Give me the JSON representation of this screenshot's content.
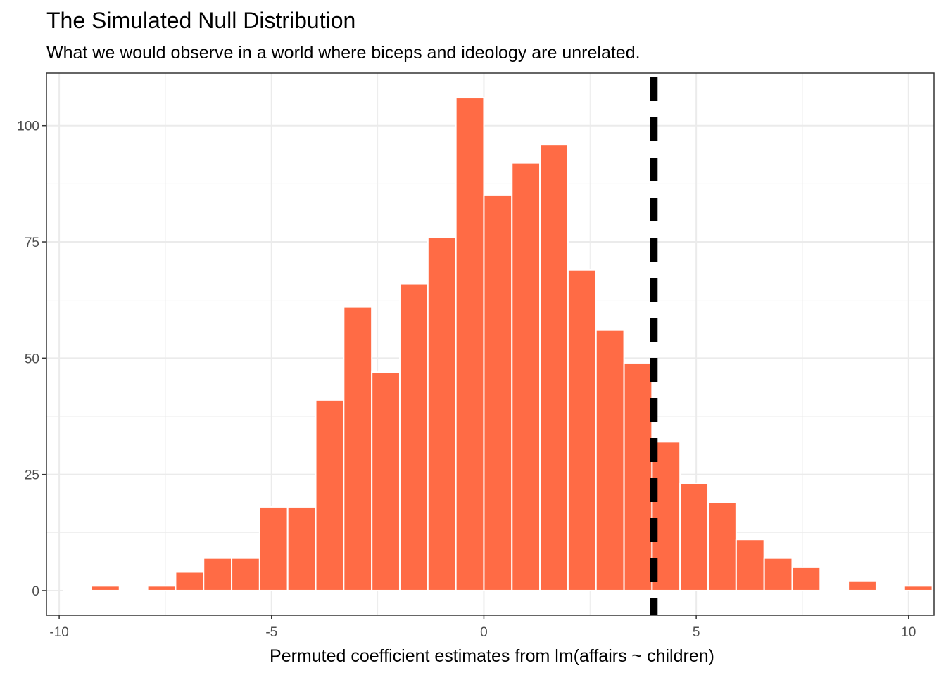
{
  "chart_data": {
    "type": "bar",
    "title": "The Simulated Null Distribution",
    "subtitle": "What we would observe in a world where biceps and ideology are unrelated.",
    "xlabel": "Permuted coefficient estimates from lm(affairs ~ children)",
    "ylabel": "",
    "xlim": [
      -10.3,
      10.6
    ],
    "ylim": [
      -5.3,
      111.3
    ],
    "x_ticks": [
      -10,
      -5,
      0,
      5,
      10
    ],
    "x_tick_labels": [
      "-10",
      "-5",
      "0",
      "5",
      "10"
    ],
    "y_ticks": [
      0,
      25,
      50,
      75,
      100
    ],
    "y_tick_labels": [
      "0",
      "25",
      "50",
      "75",
      "100"
    ],
    "bin_width": 0.66,
    "bin_centers": [
      -9.57,
      -8.91,
      -8.25,
      -7.59,
      -6.93,
      -6.27,
      -5.61,
      -4.95,
      -4.29,
      -3.63,
      -2.97,
      -2.31,
      -1.65,
      -0.99,
      -0.33,
      0.33,
      0.99,
      1.65,
      2.31,
      2.97,
      3.63,
      4.29,
      4.95,
      5.61,
      6.27,
      6.93,
      7.59,
      8.25,
      8.91,
      9.57,
      10.23
    ],
    "values": [
      0,
      1,
      0,
      1,
      4,
      7,
      7,
      18,
      18,
      41,
      61,
      47,
      66,
      76,
      106,
      85,
      92,
      96,
      69,
      56,
      49,
      32,
      23,
      19,
      11,
      7,
      5,
      0,
      2,
      0,
      1
    ],
    "observed_line": {
      "x": 4.0,
      "style": "dashed"
    },
    "colors": {
      "bar_fill": "#ff6b45",
      "bar_edge": "#ffffff",
      "line": "#000000",
      "grid": "#ebebeb",
      "panel_border": "#333333"
    }
  }
}
